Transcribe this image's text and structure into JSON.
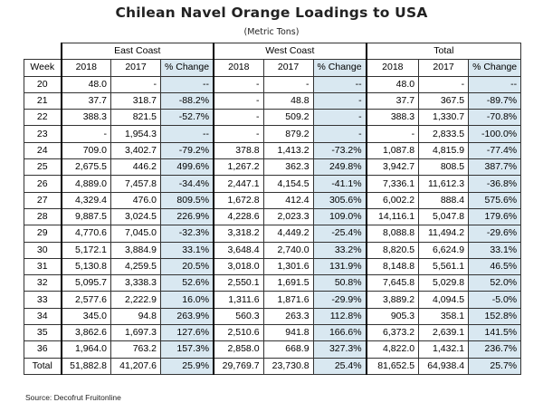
{
  "title": "Chilean Navel Orange Loadings to USA",
  "subtitle": "(Metric Tons)",
  "groups": [
    "East Coast",
    "West Coast",
    "Total"
  ],
  "headers": {
    "week": "Week",
    "y2018": "2018",
    "y2017": "2017",
    "pct": "% Change"
  },
  "rows": [
    {
      "week": "20",
      "e18": "48.0",
      "e17": "-",
      "ep": "--",
      "w18": "-",
      "w17": "-",
      "wp": "--",
      "t18": "48.0",
      "t17": "-",
      "tp": "--"
    },
    {
      "week": "21",
      "e18": "37.7",
      "e17": "318.7",
      "ep": "-88.2%",
      "w18": "-",
      "w17": "48.8",
      "wp": "-",
      "t18": "37.7",
      "t17": "367.5",
      "tp": "-89.7%"
    },
    {
      "week": "22",
      "e18": "388.3",
      "e17": "821.5",
      "ep": "-52.7%",
      "w18": "-",
      "w17": "509.2",
      "wp": "-",
      "t18": "388.3",
      "t17": "1,330.7",
      "tp": "-70.8%"
    },
    {
      "week": "23",
      "e18": "-",
      "e17": "1,954.3",
      "ep": "--",
      "w18": "-",
      "w17": "879.2",
      "wp": "-",
      "t18": "-",
      "t17": "2,833.5",
      "tp": "-100.0%"
    },
    {
      "week": "24",
      "e18": "709.0",
      "e17": "3,402.7",
      "ep": "-79.2%",
      "w18": "378.8",
      "w17": "1,413.2",
      "wp": "-73.2%",
      "t18": "1,087.8",
      "t17": "4,815.9",
      "tp": "-77.4%"
    },
    {
      "week": "25",
      "e18": "2,675.5",
      "e17": "446.2",
      "ep": "499.6%",
      "w18": "1,267.2",
      "w17": "362.3",
      "wp": "249.8%",
      "t18": "3,942.7",
      "t17": "808.5",
      "tp": "387.7%"
    },
    {
      "week": "26",
      "e18": "4,889.0",
      "e17": "7,457.8",
      "ep": "-34.4%",
      "w18": "2,447.1",
      "w17": "4,154.5",
      "wp": "-41.1%",
      "t18": "7,336.1",
      "t17": "11,612.3",
      "tp": "-36.8%"
    },
    {
      "week": "27",
      "e18": "4,329.4",
      "e17": "476.0",
      "ep": "809.5%",
      "w18": "1,672.8",
      "w17": "412.4",
      "wp": "305.6%",
      "t18": "6,002.2",
      "t17": "888.4",
      "tp": "575.6%"
    },
    {
      "week": "28",
      "e18": "9,887.5",
      "e17": "3,024.5",
      "ep": "226.9%",
      "w18": "4,228.6",
      "w17": "2,023.3",
      "wp": "109.0%",
      "t18": "14,116.1",
      "t17": "5,047.8",
      "tp": "179.6%"
    },
    {
      "week": "29",
      "e18": "4,770.6",
      "e17": "7,045.0",
      "ep": "-32.3%",
      "w18": "3,318.2",
      "w17": "4,449.2",
      "wp": "-25.4%",
      "t18": "8,088.8",
      "t17": "11,494.2",
      "tp": "-29.6%"
    },
    {
      "week": "30",
      "e18": "5,172.1",
      "e17": "3,884.9",
      "ep": "33.1%",
      "w18": "3,648.4",
      "w17": "2,740.0",
      "wp": "33.2%",
      "t18": "8,820.5",
      "t17": "6,624.9",
      "tp": "33.1%"
    },
    {
      "week": "31",
      "e18": "5,130.8",
      "e17": "4,259.5",
      "ep": "20.5%",
      "w18": "3,018.0",
      "w17": "1,301.6",
      "wp": "131.9%",
      "t18": "8,148.8",
      "t17": "5,561.1",
      "tp": "46.5%"
    },
    {
      "week": "32",
      "e18": "5,095.7",
      "e17": "3,338.3",
      "ep": "52.6%",
      "w18": "2,550.1",
      "w17": "1,691.5",
      "wp": "50.8%",
      "t18": "7,645.8",
      "t17": "5,029.8",
      "tp": "52.0%"
    },
    {
      "week": "33",
      "e18": "2,577.6",
      "e17": "2,222.9",
      "ep": "16.0%",
      "w18": "1,311.6",
      "w17": "1,871.6",
      "wp": "-29.9%",
      "t18": "3,889.2",
      "t17": "4,094.5",
      "tp": "-5.0%"
    },
    {
      "week": "34",
      "e18": "345.0",
      "e17": "94.8",
      "ep": "263.9%",
      "w18": "560.3",
      "w17": "263.3",
      "wp": "112.8%",
      "t18": "905.3",
      "t17": "358.1",
      "tp": "152.8%"
    },
    {
      "week": "35",
      "e18": "3,862.6",
      "e17": "1,697.3",
      "ep": "127.6%",
      "w18": "2,510.6",
      "w17": "941.8",
      "wp": "166.6%",
      "t18": "6,373.2",
      "t17": "2,639.1",
      "tp": "141.5%"
    },
    {
      "week": "36",
      "e18": "1,964.0",
      "e17": "763.2",
      "ep": "157.3%",
      "w18": "2,858.0",
      "w17": "668.9",
      "wp": "327.3%",
      "t18": "4,822.0",
      "t17": "1,432.1",
      "tp": "236.7%"
    }
  ],
  "total": {
    "week": "Total",
    "e18": "51,882.8",
    "e17": "41,207.6",
    "ep": "25.9%",
    "w18": "29,769.7",
    "w17": "23,730.8",
    "wp": "25.4%",
    "t18": "81,652.5",
    "t17": "64,938.4",
    "tp": "25.7%"
  },
  "source": "Source:  Decofrut Fruitonline",
  "colors": {
    "pct_fill": "#d9e8f1",
    "border": "#333333"
  }
}
